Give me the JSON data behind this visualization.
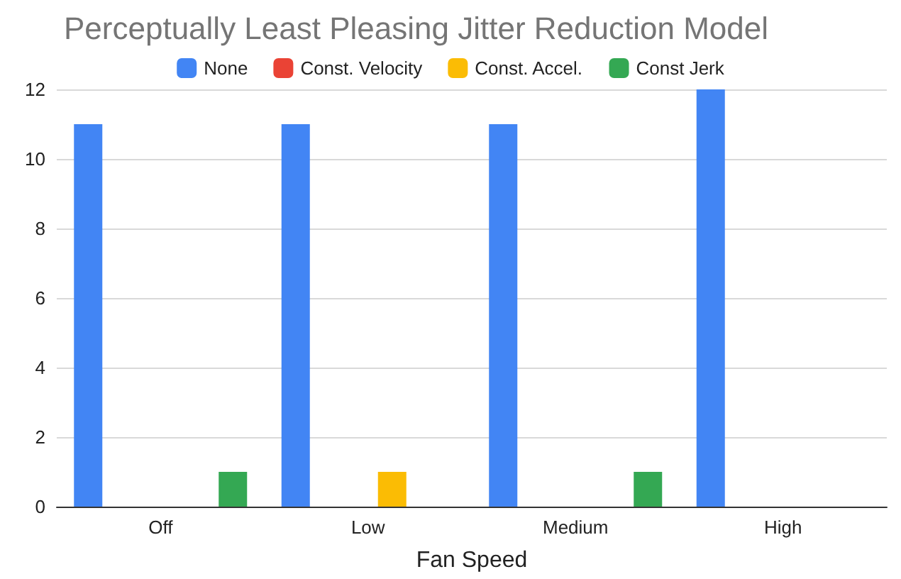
{
  "chart_data": {
    "type": "bar",
    "title": "Perceptually Least Pleasing Jitter Reduction Model",
    "xlabel": "Fan Speed",
    "categories": [
      "Off",
      "Low",
      "Medium",
      "High"
    ],
    "series": [
      {
        "name": "None",
        "color": "#4285f4",
        "values": [
          11,
          11,
          11,
          12
        ]
      },
      {
        "name": "Const. Velocity",
        "color": "#ea4335",
        "values": [
          0,
          0,
          0,
          0
        ]
      },
      {
        "name": "Const. Accel.",
        "color": "#fbbc04",
        "values": [
          0,
          1,
          0,
          0
        ]
      },
      {
        "name": "Const Jerk",
        "color": "#34a853",
        "values": [
          1,
          0,
          1,
          0
        ]
      }
    ],
    "ylim": [
      0,
      12
    ],
    "yticks": [
      0,
      2,
      4,
      6,
      8,
      10,
      12
    ],
    "grid": "y",
    "legend": "top"
  }
}
